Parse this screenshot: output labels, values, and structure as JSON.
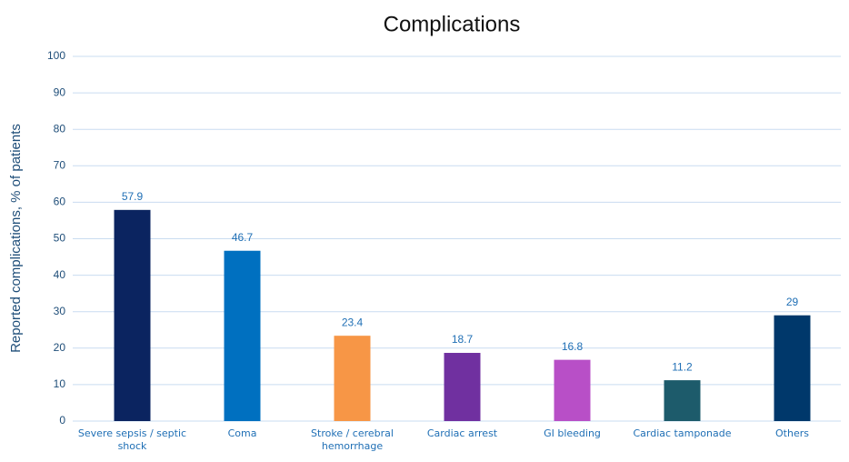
{
  "chart_data": {
    "type": "bar",
    "title": "Complications",
    "y_label": "Reported complications, % of patients",
    "categories": [
      "Severe sepsis / septic shock",
      "Coma",
      "Stroke / cerebral hemorrhage",
      "Cardiac arrest",
      "GI bleeding",
      "Cardiac tamponade",
      "Others"
    ],
    "values": [
      57.9,
      46.7,
      23.4,
      18.7,
      16.8,
      11.2,
      29
    ],
    "colors": [
      "#0b2460",
      "#0070c0",
      "#f79646",
      "#7030a0",
      "#b84fc7",
      "#1d5b6b",
      "#00386b"
    ],
    "ylim": [
      0,
      100
    ],
    "yticks": [
      0,
      10,
      20,
      30,
      40,
      50,
      60,
      70,
      80,
      90,
      100
    ],
    "grid": true
  }
}
